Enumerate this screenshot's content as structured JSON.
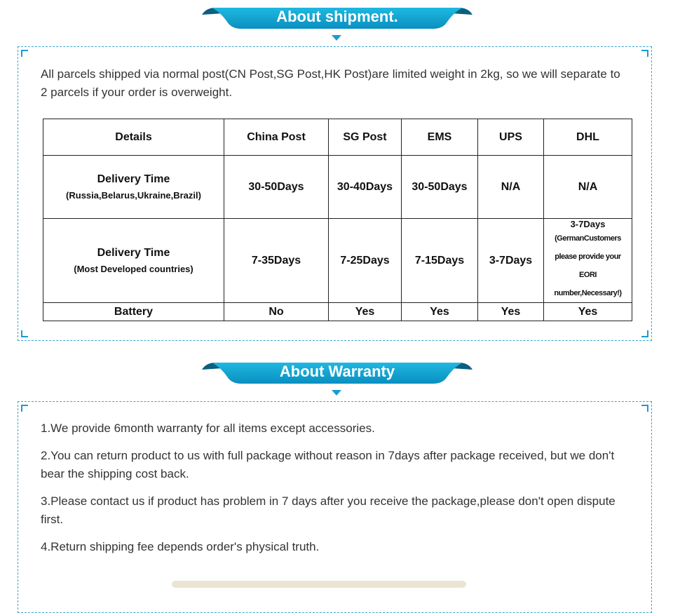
{
  "shipment": {
    "title": "About shipment.",
    "intro": "All parcels shipped via normal post(CN Post,SG Post,HK Post)are limited weight in 2kg, so we will separate to 2 parcels if your order is overweight.",
    "headers": [
      "Details",
      "China Post",
      "SG Post",
      "EMS",
      "UPS",
      "DHL"
    ],
    "rows": [
      {
        "label": "Delivery Time",
        "sub": "(Russia,Belarus,Ukraine,Brazil)",
        "values": [
          "30-50Days",
          "30-40Days",
          "30-50Days",
          "N/A",
          "N/A"
        ]
      },
      {
        "label": "Delivery Time",
        "sub": "(Most Developed countries)",
        "values": [
          "7-35Days",
          "7-25Days",
          "7-15Days",
          "3-7Days"
        ],
        "dhl_main": "3-7Days",
        "dhl_note": "(GermanCustomers please provide your EORI number,Necessary!)"
      },
      {
        "label": "Battery",
        "values": [
          "No",
          "Yes",
          "Yes",
          "Yes",
          "Yes"
        ]
      }
    ]
  },
  "warranty": {
    "title": "About Warranty",
    "items": [
      "1.We provide 6month warranty for all items except accessories.",
      "2.You can return product to us with full package without reason in 7days after package received, but we don't bear the shipping cost back.",
      "3.Please contact us if product has problem in 7 days after you receive the package,please don't open dispute first.",
      "4.Return shipping fee depends order's physical truth."
    ]
  },
  "colors": {
    "accent": "#1a9ad6",
    "banner_dark": "#0b5f80"
  }
}
